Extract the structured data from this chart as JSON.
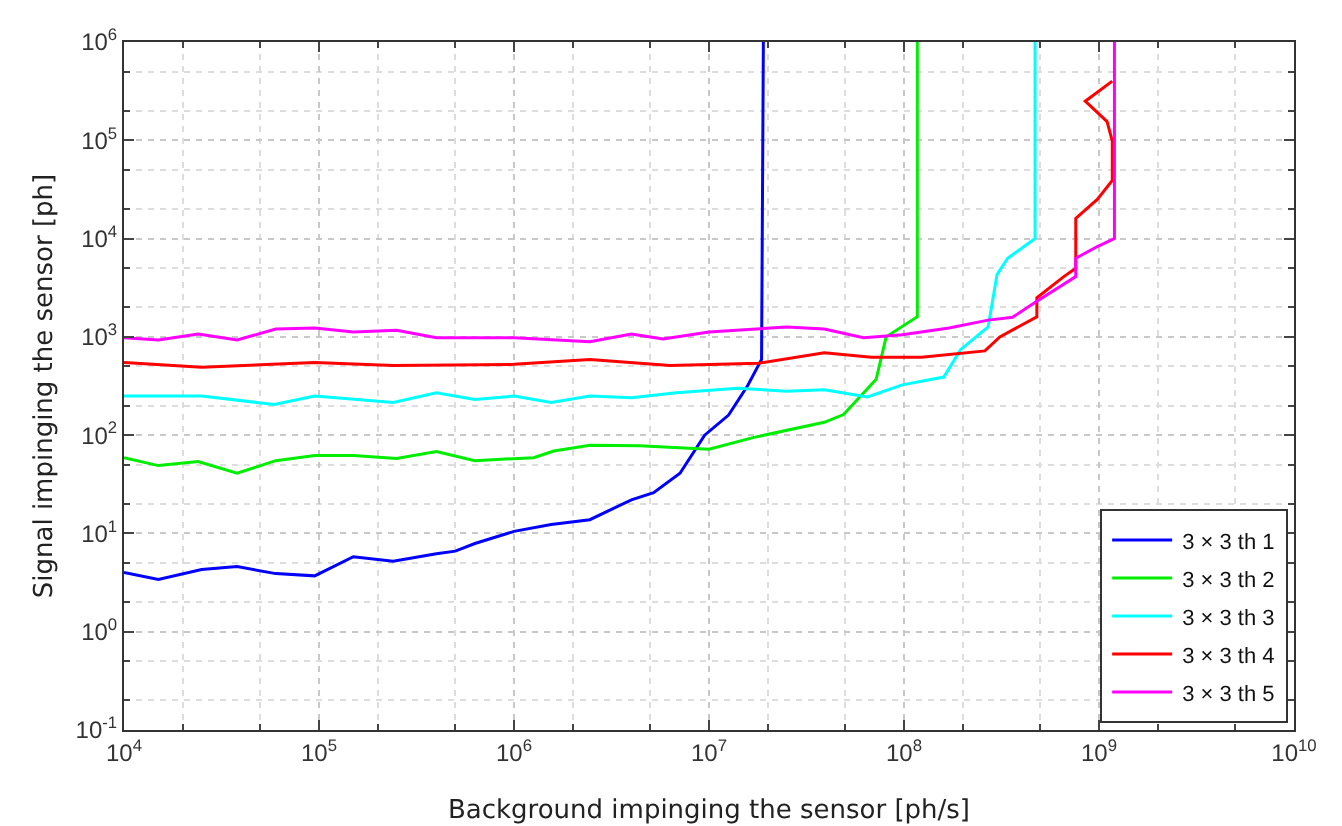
{
  "chart_data": {
    "type": "line",
    "xlabel": "Background impinging the sensor [ph/s]",
    "ylabel": "Signal impinging the sensor [ph]",
    "log": "xy",
    "grid": true,
    "legend": "bottom right",
    "marker": "none",
    "line_style": "solid",
    "xlim": [
      10000,
      10000000000
    ],
    "ylim": [
      0.1,
      1000000
    ],
    "xticks": [
      {
        "value": 10000,
        "label": "10$^{4}$"
      },
      {
        "value": 100000,
        "label": "10$^{5}$"
      },
      {
        "value": 1000000,
        "label": "10$^{6}$"
      },
      {
        "value": 10000000,
        "label": "10$^{7}$"
      },
      {
        "value": 100000000,
        "label": "10$^{8}$"
      },
      {
        "value": 1000000000,
        "label": "10$^{9}$"
      },
      {
        "value": 10000000000,
        "label": "10$^{10}$"
      }
    ],
    "yticks": [
      {
        "value": 0.1,
        "label": "10$^{-1}$"
      },
      {
        "value": 1,
        "label": "10$^{0}$"
      },
      {
        "value": 10,
        "label": "10$^{1}$"
      },
      {
        "value": 100,
        "label": "10$^{2}$"
      },
      {
        "value": 1000,
        "label": "10$^{3}$"
      },
      {
        "value": 10000,
        "label": "10$^{4}$"
      },
      {
        "value": 100000,
        "label": "10$^{5}$"
      },
      {
        "value": 1000000,
        "label": "10$^{6}$"
      }
    ],
    "series": [
      {
        "name": "3 × 3 th 1",
        "color": "#0000ff",
        "x": [
          10000,
          15000,
          25000,
          38000,
          60000,
          95000,
          150000,
          240000,
          400000,
          500000,
          630000,
          1000000,
          1550000,
          2450000,
          3200000,
          4000000,
          5200000,
          7100000,
          9500000,
          12600000,
          15800000,
          18600000,
          19000000
        ],
        "values": [
          4,
          3.4,
          4.3,
          4.6,
          3.9,
          3.7,
          5.8,
          5.2,
          6.2,
          6.6,
          7.9,
          10.5,
          12.3,
          13.8,
          17.8,
          22,
          26,
          41,
          100,
          160,
          320,
          590,
          1000000
        ]
      },
      {
        "name": "3 × 3 th 2",
        "color": "#00ee00",
        "x": [
          10000,
          15000,
          24000,
          38000,
          60000,
          95000,
          150000,
          250000,
          400000,
          630000,
          1260000,
          1600000,
          2450000,
          4400000,
          10000000,
          17000000,
          39000000,
          49000000,
          72000000,
          81000000,
          117000000,
          117000000
        ],
        "values": [
          59,
          49,
          54,
          41,
          55,
          62,
          62,
          58,
          68,
          55,
          59,
          69,
          79,
          78,
          72,
          95,
          135,
          162,
          370,
          1000,
          1600,
          1000000
        ]
      },
      {
        "name": "3 × 3 th 3",
        "color": "#00ffff",
        "x": [
          10000,
          25000,
          59000,
          95000,
          240000,
          400000,
          630000,
          1000000,
          1550000,
          2450000,
          4000000,
          6800000,
          14000000,
          25000000,
          39000000,
          65000000,
          98000000,
          160000000,
          195000000,
          270000000,
          300000000,
          340000000,
          470000000,
          470000000
        ],
        "values": [
          250,
          250,
          205,
          250,
          215,
          270,
          230,
          250,
          215,
          250,
          240,
          270,
          300,
          280,
          290,
          245,
          325,
          390,
          740,
          1260,
          4300,
          6300,
          10000,
          1000000
        ]
      },
      {
        "name": "3 × 3 th 4",
        "color": "#ff0000",
        "x": [
          10000,
          25000,
          95000,
          240000,
          1000000,
          2450000,
          6300000,
          18000000,
          39000000,
          68000000,
          123000000,
          260000000,
          310000000,
          480000000,
          480000000,
          660000000,
          760000000,
          760000000,
          980000000,
          1170000000,
          1170000000,
          1100000000,
          850000000,
          1170000000
        ],
        "values": [
          550,
          490,
          550,
          510,
          525,
          590,
          510,
          540,
          690,
          620,
          620,
          720,
          1000,
          1600,
          2500,
          4100,
          5000,
          16000,
          25000,
          39000,
          98000,
          155000,
          250000,
          400000
        ]
      },
      {
        "name": "3 × 3 th 5",
        "color": "#ff00ff",
        "x": [
          10000,
          15000,
          24000,
          38000,
          60000,
          95000,
          150000,
          250000,
          400000,
          1000000,
          2450000,
          4000000,
          5800000,
          10000000,
          25000000,
          39000000,
          62000000,
          98000000,
          170000000,
          270000000,
          360000000,
          480000000,
          760000000,
          760000000,
          980000000,
          1200000000,
          1200000000
        ],
        "values": [
          980,
          930,
          1070,
          930,
          1200,
          1230,
          1120,
          1170,
          980,
          980,
          890,
          1070,
          950,
          1120,
          1260,
          1200,
          980,
          1050,
          1230,
          1480,
          1580,
          2300,
          4100,
          6300,
          8300,
          10000,
          1000000
        ]
      }
    ]
  }
}
